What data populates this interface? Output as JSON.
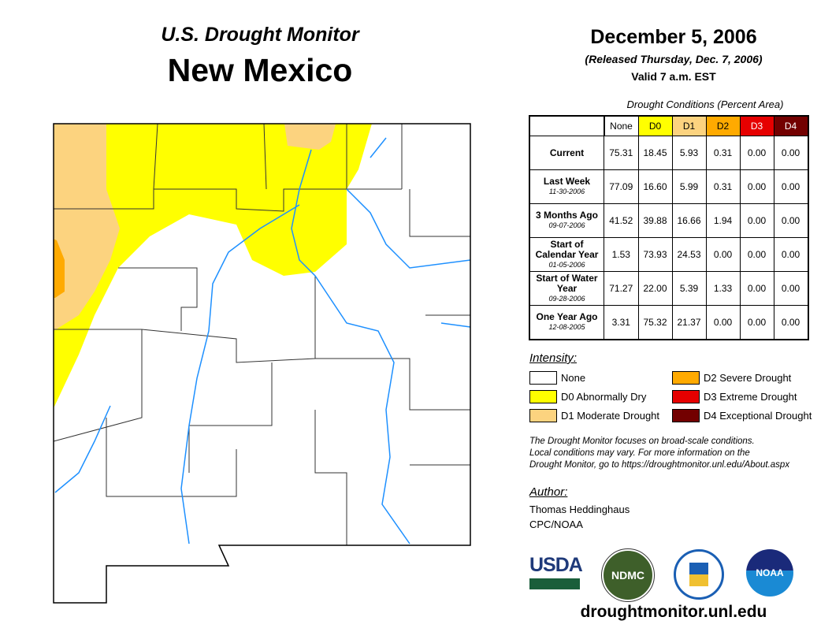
{
  "header": {
    "title": "U.S. Drought Monitor",
    "state": "New Mexico",
    "date": "December 5, 2006",
    "released": "(Released Thursday, Dec. 7, 2006)",
    "valid": "Valid 7 a.m. EST"
  },
  "table": {
    "caption": "Drought Conditions (Percent Area)",
    "columns": [
      "None",
      "D0",
      "D1",
      "D2",
      "D3",
      "D4"
    ],
    "rows": [
      {
        "label": "Current",
        "date": "",
        "values": [
          "75.31",
          "18.45",
          "5.93",
          "0.31",
          "0.00",
          "0.00"
        ]
      },
      {
        "label": "Last Week",
        "date": "11-30-2006",
        "values": [
          "77.09",
          "16.60",
          "5.99",
          "0.31",
          "0.00",
          "0.00"
        ]
      },
      {
        "label": "3 Months Ago",
        "date": "09-07-2006",
        "values": [
          "41.52",
          "39.88",
          "16.66",
          "1.94",
          "0.00",
          "0.00"
        ]
      },
      {
        "label": "Start of Calendar Year",
        "date": "01-05-2006",
        "values": [
          "1.53",
          "73.93",
          "24.53",
          "0.00",
          "0.00",
          "0.00"
        ]
      },
      {
        "label": "Start of Water Year",
        "date": "09-28-2006",
        "values": [
          "71.27",
          "22.00",
          "5.39",
          "1.33",
          "0.00",
          "0.00"
        ]
      },
      {
        "label": "One Year Ago",
        "date": "12-08-2005",
        "values": [
          "3.31",
          "75.32",
          "21.37",
          "0.00",
          "0.00",
          "0.00"
        ]
      }
    ]
  },
  "legend": {
    "title": "Intensity:",
    "items": [
      {
        "label": "None",
        "color": "#ffffff"
      },
      {
        "label": "D0 Abnormally Dry",
        "color": "#ffff00"
      },
      {
        "label": "D1 Moderate Drought",
        "color": "#fcd37f"
      },
      {
        "label": "D2 Severe Drought",
        "color": "#ffaa00"
      },
      {
        "label": "D3 Extreme Drought",
        "color": "#e60000"
      },
      {
        "label": "D4 Exceptional Drought",
        "color": "#730000"
      }
    ]
  },
  "note": [
    "The Drought Monitor focuses on broad-scale conditions.",
    "Local conditions may vary. For more information on the",
    "Drought Monitor, go to https://droughtmonitor.unl.edu/About.aspx"
  ],
  "author": {
    "title": "Author:",
    "name": "Thomas Heddinghaus",
    "org": "CPC/NOAA"
  },
  "logos": [
    "USDA",
    "NDMC",
    "NOAA"
  ],
  "url": "droughtmonitor.unl.edu"
}
